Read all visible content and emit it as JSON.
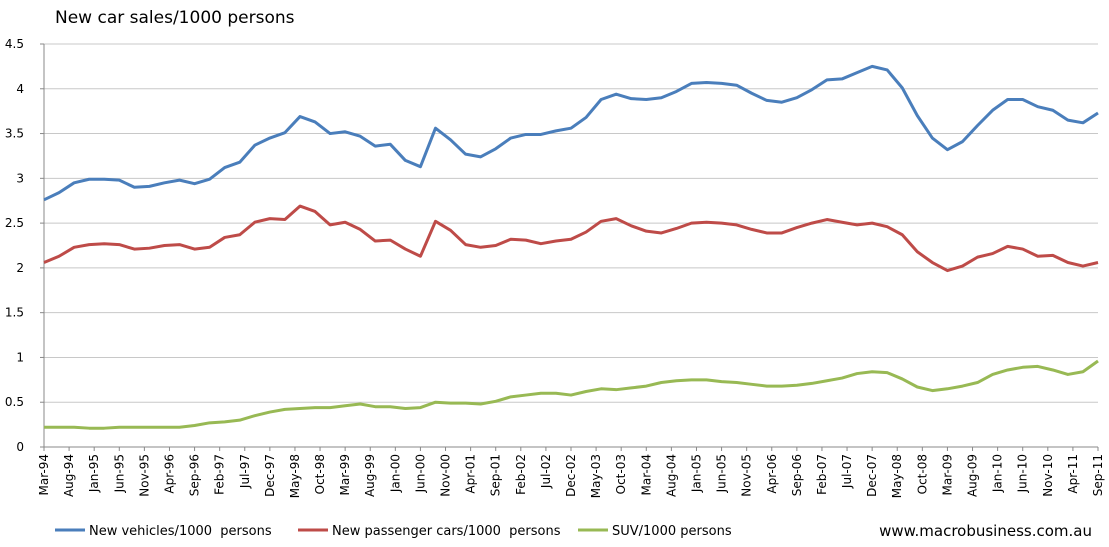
{
  "chart_data": {
    "type": "line",
    "title": "New car sales/1000 persons",
    "source": "www.macrobusiness.com.au",
    "x": [
      "Mar-94",
      "Jun-94",
      "Sep-94",
      "Dec-94",
      "Mar-95",
      "Jun-95",
      "Sep-95",
      "Dec-95",
      "Mar-96",
      "Jun-96",
      "Sep-96",
      "Dec-96",
      "Mar-97",
      "Jun-97",
      "Sep-97",
      "Dec-97",
      "Mar-98",
      "Jun-98",
      "Sep-98",
      "Dec-98",
      "Mar-99",
      "Jun-99",
      "Sep-99",
      "Dec-99",
      "Mar-00",
      "Jun-00",
      "Sep-00",
      "Dec-00",
      "Mar-01",
      "Jun-01",
      "Sep-01",
      "Dec-01",
      "Mar-02",
      "Jun-02",
      "Sep-02",
      "Dec-02",
      "Mar-03",
      "Jun-03",
      "Sep-03",
      "Dec-03",
      "Mar-04",
      "Jun-04",
      "Sep-04",
      "Dec-04",
      "Mar-05",
      "Jun-05",
      "Sep-05",
      "Dec-05",
      "Mar-06",
      "Jun-06",
      "Sep-06",
      "Dec-06",
      "Mar-07",
      "Jun-07",
      "Sep-07",
      "Dec-07",
      "Mar-08",
      "Jun-08",
      "Sep-08",
      "Dec-08",
      "Mar-09",
      "Jun-09",
      "Sep-09",
      "Dec-09",
      "Mar-10",
      "Jun-10",
      "Sep-10",
      "Dec-10",
      "Mar-11",
      "Jun-11",
      "Sep-11"
    ],
    "xticks": [
      "Mar-94",
      "Aug-94",
      "Jan-95",
      "Jun-95",
      "Nov-95",
      "Apr-96",
      "Sep-96",
      "Feb-97",
      "Jul-97",
      "Dec-97",
      "May-98",
      "Oct-98",
      "Mar-99",
      "Aug-99",
      "Jan-00",
      "Jun-00",
      "Nov-00",
      "Apr-01",
      "Sep-01",
      "Feb-02",
      "Jul-02",
      "Dec-02",
      "May-03",
      "Oct-03",
      "Mar-04",
      "Aug-04",
      "Jan-05",
      "Jun-05",
      "Nov-05",
      "Apr-06",
      "Sep-06",
      "Feb-07",
      "Jul-07",
      "Dec-07",
      "May-08",
      "Oct-08",
      "Mar-09",
      "Aug-09",
      "Jan-10",
      "Jun-10",
      "Nov-10",
      "Apr-11",
      "Sep-11"
    ],
    "ylim": [
      0,
      4.5
    ],
    "yticks": [
      0,
      0.5,
      1,
      1.5,
      2,
      2.5,
      3,
      3.5,
      4,
      4.5
    ],
    "grid": true,
    "legend": "bottom",
    "series": [
      {
        "name": "New vehicles/1000  persons",
        "color": "#4a7ebb",
        "values": [
          2.76,
          2.84,
          2.95,
          2.99,
          2.99,
          2.98,
          2.9,
          2.91,
          2.95,
          2.98,
          2.94,
          2.99,
          3.12,
          3.18,
          3.37,
          3.45,
          3.51,
          3.69,
          3.63,
          3.5,
          3.52,
          3.47,
          3.36,
          3.38,
          3.2,
          3.13,
          3.56,
          3.43,
          3.27,
          3.24,
          3.33,
          3.45,
          3.49,
          3.49,
          3.53,
          3.56,
          3.68,
          3.88,
          3.94,
          3.89,
          3.88,
          3.9,
          3.97,
          4.06,
          4.07,
          4.06,
          4.04,
          3.95,
          3.87,
          3.85,
          3.9,
          3.99,
          4.1,
          4.11,
          4.18,
          4.25,
          4.21,
          4.01,
          3.7,
          3.45,
          3.32,
          3.41,
          3.59,
          3.76,
          3.88,
          3.88,
          3.8,
          3.76,
          3.65,
          3.62,
          3.73
        ]
      },
      {
        "name": "New passenger cars/1000  persons",
        "color": "#be4b48",
        "values": [
          2.06,
          2.13,
          2.23,
          2.26,
          2.27,
          2.26,
          2.21,
          2.22,
          2.25,
          2.26,
          2.21,
          2.23,
          2.34,
          2.37,
          2.51,
          2.55,
          2.54,
          2.69,
          2.63,
          2.48,
          2.51,
          2.43,
          2.3,
          2.31,
          2.21,
          2.13,
          2.52,
          2.42,
          2.26,
          2.23,
          2.25,
          2.32,
          2.31,
          2.27,
          2.3,
          2.32,
          2.4,
          2.52,
          2.55,
          2.47,
          2.41,
          2.39,
          2.44,
          2.5,
          2.51,
          2.5,
          2.48,
          2.43,
          2.39,
          2.39,
          2.45,
          2.5,
          2.54,
          2.51,
          2.48,
          2.5,
          2.46,
          2.37,
          2.18,
          2.06,
          1.97,
          2.02,
          2.12,
          2.16,
          2.24,
          2.21,
          2.13,
          2.14,
          2.06,
          2.02,
          2.06
        ]
      },
      {
        "name": "SUV/1000 persons",
        "color": "#98b954",
        "values": [
          0.22,
          0.22,
          0.22,
          0.21,
          0.21,
          0.22,
          0.22,
          0.22,
          0.22,
          0.22,
          0.24,
          0.27,
          0.28,
          0.3,
          0.35,
          0.39,
          0.42,
          0.43,
          0.44,
          0.44,
          0.46,
          0.48,
          0.45,
          0.45,
          0.43,
          0.44,
          0.5,
          0.49,
          0.49,
          0.48,
          0.51,
          0.56,
          0.58,
          0.6,
          0.6,
          0.58,
          0.62,
          0.65,
          0.64,
          0.66,
          0.68,
          0.72,
          0.74,
          0.75,
          0.75,
          0.73,
          0.72,
          0.7,
          0.68,
          0.68,
          0.69,
          0.71,
          0.74,
          0.77,
          0.82,
          0.84,
          0.83,
          0.76,
          0.67,
          0.63,
          0.65,
          0.68,
          0.72,
          0.81,
          0.86,
          0.89,
          0.9,
          0.86,
          0.81,
          0.84,
          0.96
        ]
      }
    ]
  }
}
